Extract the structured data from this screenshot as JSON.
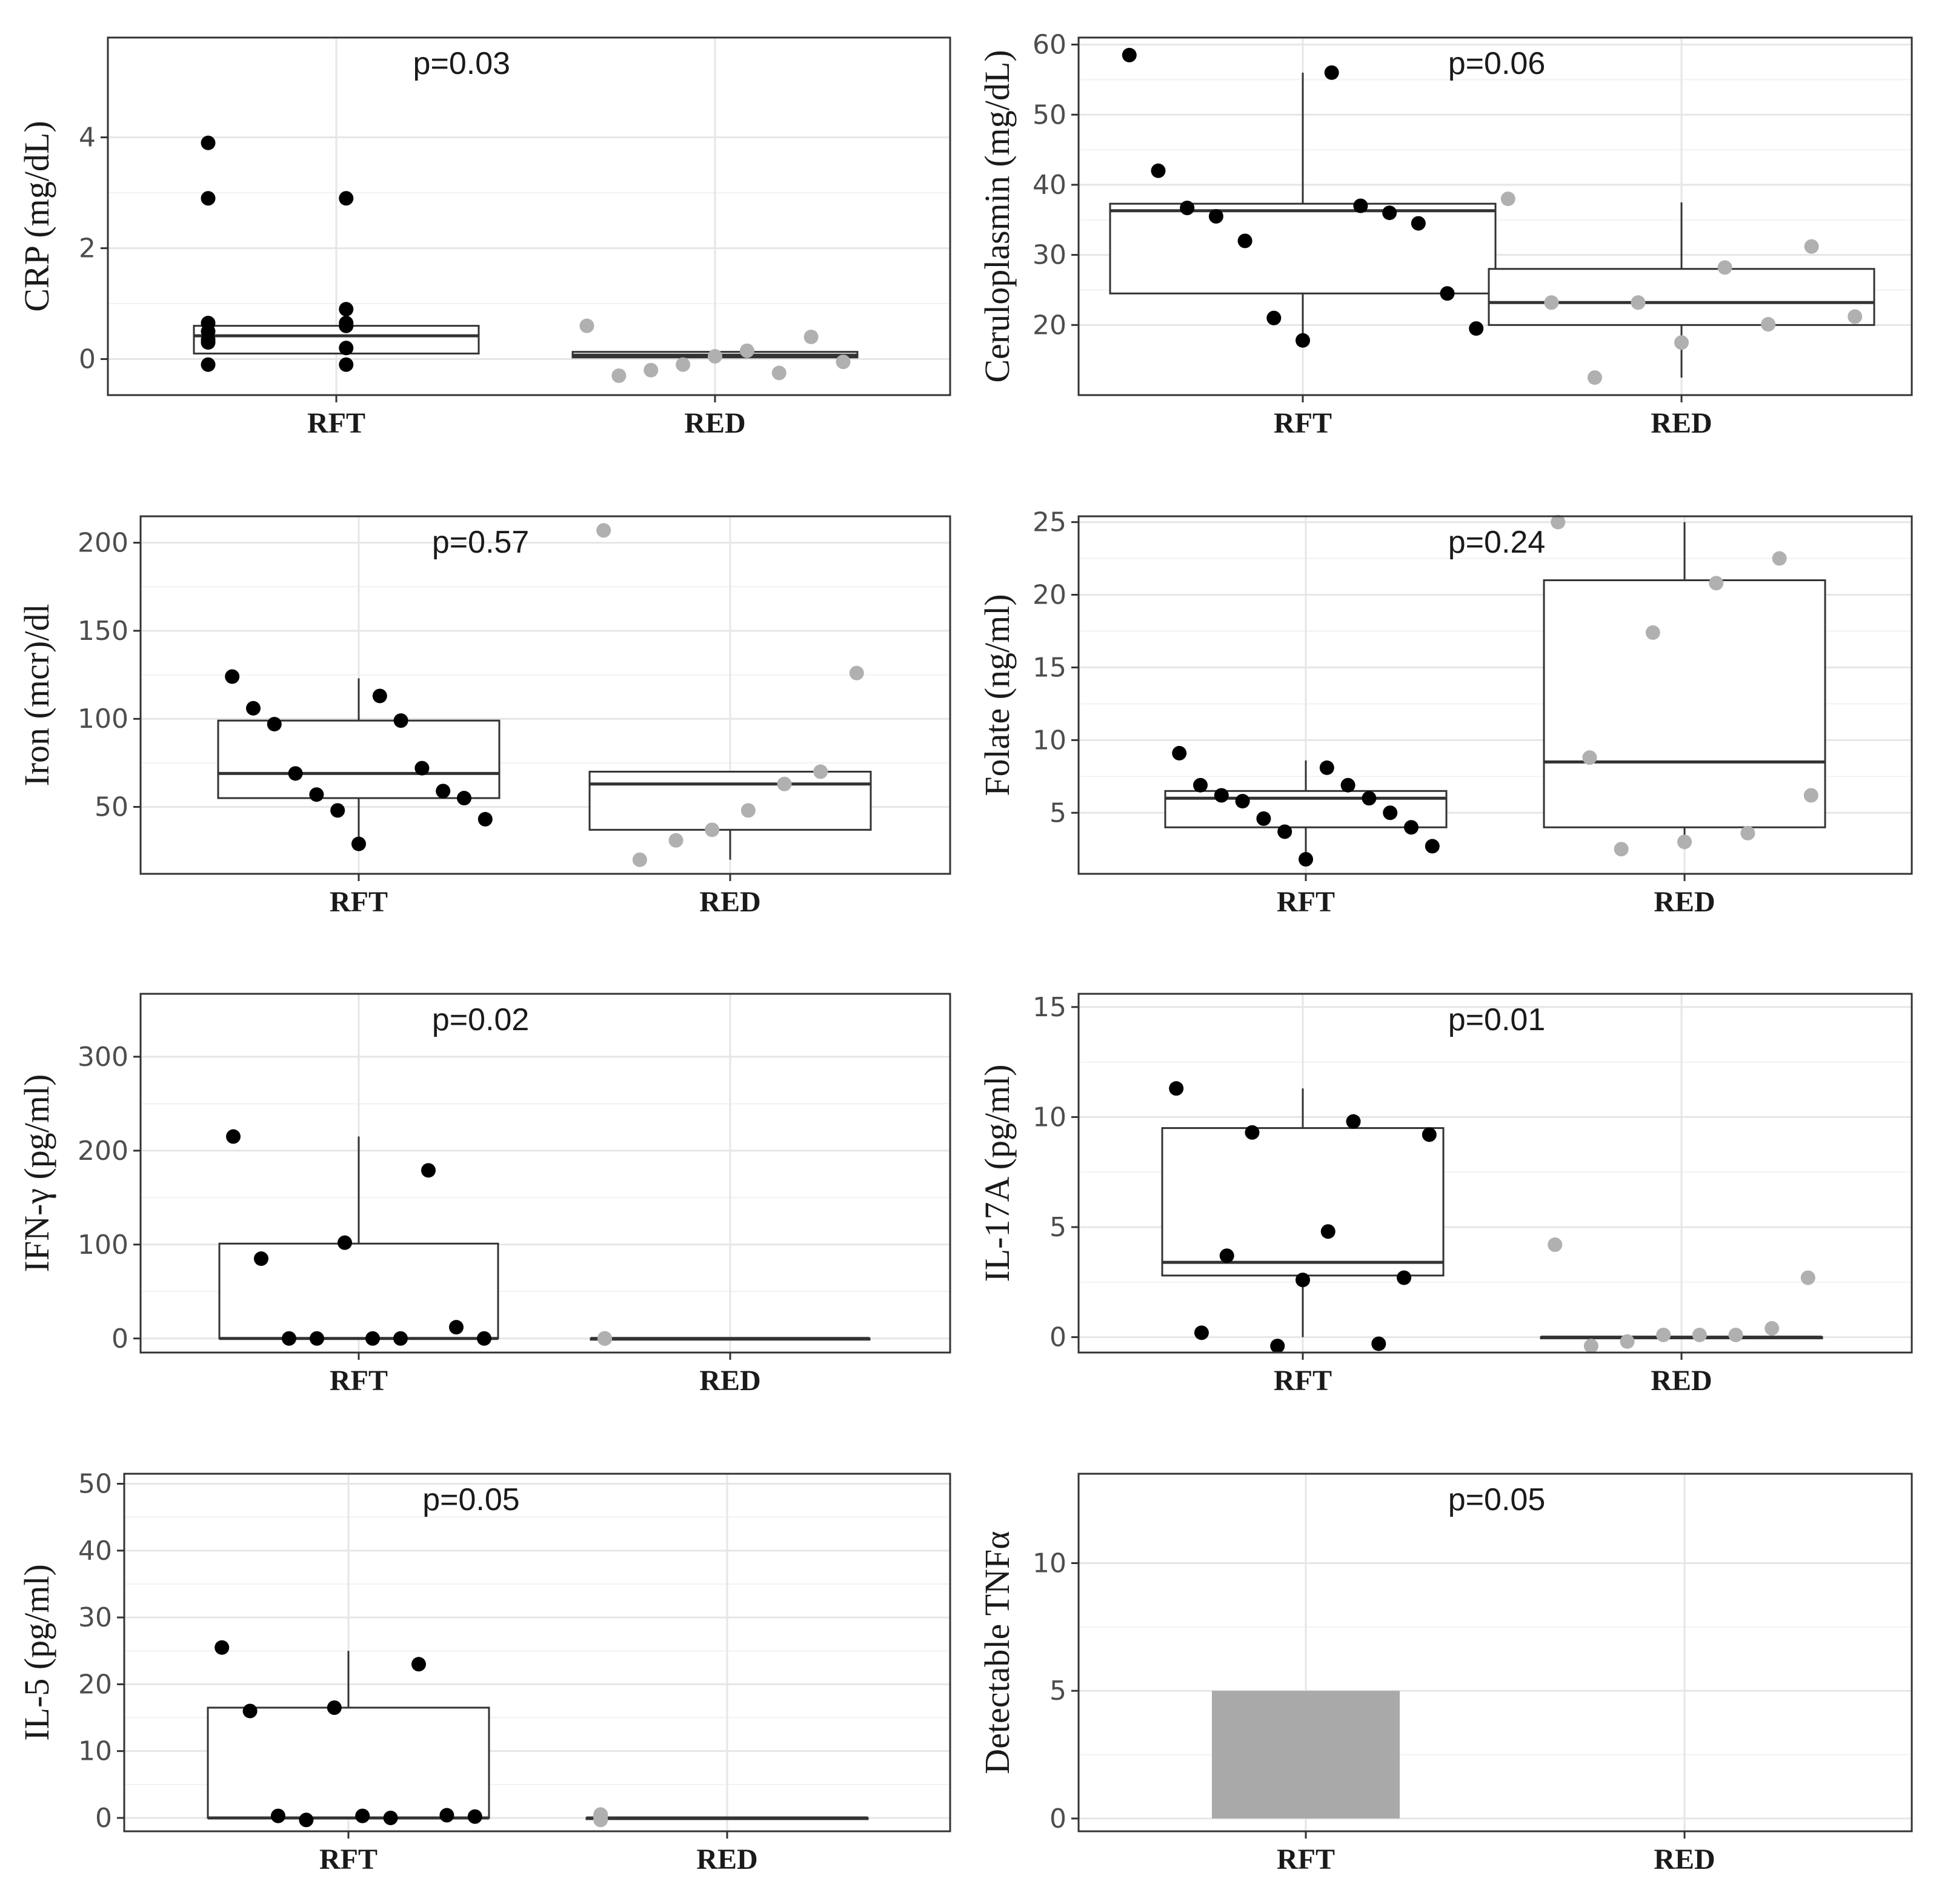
{
  "figure": {
    "colors": {
      "rft_points": "#000000",
      "red_points": "#b0b0b0",
      "bar_fill": "#a9a9a9",
      "grid_major": "#e6e6e6",
      "grid_minor": "#f2f2f2",
      "panel_border": "#333333"
    }
  },
  "chart_data": [
    {
      "type": "box+jitter",
      "ylabel": "CRP (mg/dL)",
      "annotation": "p=0.03",
      "categories": [
        "RFT",
        "RED"
      ],
      "yticks": [
        0,
        2,
        4
      ],
      "ylim": [
        -0.65,
        5.8
      ],
      "boxes": [
        {
          "group": "RFT",
          "q1": 0.1,
          "median": 0.42,
          "q3": 0.6
        },
        {
          "group": "RED",
          "q1": 0.03,
          "median": 0.07,
          "q3": 0.13
        }
      ],
      "points": [
        {
          "group": "RFT",
          "values": [
            3.9,
            2.9,
            2.9,
            0.9,
            0.5,
            0.2,
            0.65,
            0.6,
            0.3,
            0.6,
            0.35,
            0.65,
            -0.1,
            -0.1
          ]
        },
        {
          "group": "RED",
          "values": [
            0.6,
            0.4,
            0.15,
            -0.1,
            -0.3,
            -0.05,
            -0.25,
            0.05,
            -0.2
          ]
        }
      ]
    },
    {
      "type": "box+jitter",
      "ylabel": "Ceruloplasmin (mg/dL)",
      "annotation": "p=0.06",
      "categories": [
        "RFT",
        "RED"
      ],
      "yticks": [
        20,
        30,
        40,
        50,
        60
      ],
      "ylim": [
        10,
        61
      ],
      "boxes": [
        {
          "group": "RFT",
          "q1": 24.5,
          "median": 36.3,
          "q3": 37.3,
          "whisker_low": 17.5,
          "whisker_high": 56
        },
        {
          "group": "RED",
          "q1": 20,
          "median": 23.2,
          "q3": 28,
          "whisker_low": 12.5,
          "whisker_high": 37.5
        }
      ],
      "points": [
        {
          "group": "RFT",
          "values": [
            58.5,
            56,
            42,
            37,
            36.7,
            36,
            35.5,
            34.5,
            32,
            24.5,
            21,
            19.5,
            17.8
          ]
        },
        {
          "group": "RED",
          "values": [
            38,
            31.2,
            28.2,
            23.2,
            23.2,
            21.2,
            20.1,
            17.5,
            12.5
          ]
        }
      ]
    },
    {
      "type": "box+jitter",
      "ylabel": "Iron (mcr)/dl",
      "annotation": "p=0.57",
      "categories": [
        "RFT",
        "RED"
      ],
      "yticks": [
        50,
        100,
        150,
        200
      ],
      "ylim": [
        12,
        215
      ],
      "boxes": [
        {
          "group": "RFT",
          "q1": 55,
          "median": 69,
          "q3": 99,
          "whisker_low": 28,
          "whisker_high": 123
        },
        {
          "group": "RED",
          "q1": 37,
          "median": 63,
          "q3": 70,
          "whisker_low": 20,
          "whisker_high": 70
        }
      ],
      "points": [
        {
          "group": "RFT",
          "values": [
            124,
            113,
            106,
            99,
            97,
            72,
            69,
            59,
            57,
            55,
            48,
            43,
            29
          ]
        },
        {
          "group": "RED",
          "values": [
            207,
            126,
            70,
            63,
            48,
            37,
            31,
            20
          ]
        }
      ]
    },
    {
      "type": "box+jitter",
      "ylabel": "Folate (ng/ml)",
      "annotation": "p=0.24",
      "categories": [
        "RFT",
        "RED"
      ],
      "yticks": [
        5,
        10,
        15,
        20,
        25
      ],
      "ylim": [
        0.8,
        25.4
      ],
      "boxes": [
        {
          "group": "RFT",
          "q1": 4,
          "median": 6,
          "q3": 6.5,
          "whisker_low": 1.5,
          "whisker_high": 8.6
        },
        {
          "group": "RED",
          "q1": 4,
          "median": 8.5,
          "q3": 21,
          "whisker_low": 2.5,
          "whisker_high": 25
        }
      ],
      "points": [
        {
          "group": "RFT",
          "values": [
            9.1,
            8.1,
            6.9,
            6.9,
            6.2,
            6.0,
            5.8,
            5.0,
            4.6,
            4.0,
            3.7,
            2.7,
            1.8
          ]
        },
        {
          "group": "RED",
          "values": [
            25,
            22.5,
            20.8,
            17.4,
            8.8,
            6.2,
            3.6,
            3.0,
            2.5
          ]
        }
      ]
    },
    {
      "type": "box+jitter",
      "ylabel": "IFN-γ (pg/ml)",
      "annotation": "p=0.02",
      "categories": [
        "RFT",
        "RED"
      ],
      "yticks": [
        0,
        100,
        200,
        300
      ],
      "ylim": [
        -15,
        367
      ],
      "boxes": [
        {
          "group": "RFT",
          "q1": 0,
          "median": 0,
          "q3": 101,
          "whisker_low": 0,
          "whisker_high": 215
        },
        {
          "group": "RED",
          "q1": 0,
          "median": 0,
          "q3": 0
        }
      ],
      "points": [
        {
          "group": "RFT",
          "values": [
            215,
            179,
            102,
            85,
            12,
            0,
            0,
            0,
            0,
            0
          ]
        },
        {
          "group": "RED",
          "values": [
            0,
            0,
            0,
            0,
            0,
            0,
            0
          ]
        }
      ]
    },
    {
      "type": "box+jitter",
      "ylabel": "IL-17A (pg/ml)",
      "annotation": "p=0.01",
      "categories": [
        "RFT",
        "RED"
      ],
      "yticks": [
        0,
        5,
        10,
        15
      ],
      "ylim": [
        -0.7,
        15.6
      ],
      "boxes": [
        {
          "group": "RFT",
          "q1": 2.8,
          "median": 3.4,
          "q3": 9.5,
          "whisker_low": 0,
          "whisker_high": 11.3
        },
        {
          "group": "RED",
          "q1": 0,
          "median": 0,
          "q3": 0
        }
      ],
      "points": [
        {
          "group": "RFT",
          "values": [
            11.3,
            9.8,
            9.3,
            9.2,
            4.8,
            3.7,
            2.7,
            2.6,
            0.2,
            -0.3,
            -0.4
          ]
        },
        {
          "group": "RED",
          "values": [
            4.2,
            2.7,
            0.4,
            0.1,
            0.1,
            0.1,
            -0.2,
            -0.4
          ]
        }
      ]
    },
    {
      "type": "box+jitter",
      "ylabel": "IL-5 (pg/ml)",
      "annotation": "p=0.05",
      "categories": [
        "RFT",
        "RED"
      ],
      "yticks": [
        0,
        10,
        20,
        30,
        40,
        50
      ],
      "ylim": [
        -2,
        51.5
      ],
      "boxes": [
        {
          "group": "RFT",
          "q1": 0,
          "median": 0,
          "q3": 16.5,
          "whisker_low": 0,
          "whisker_high": 25
        },
        {
          "group": "RED",
          "q1": 0,
          "median": 0,
          "q3": 0
        }
      ],
      "points": [
        {
          "group": "RFT",
          "values": [
            25.5,
            23,
            16.5,
            16,
            0.4,
            0.3,
            0.3,
            0.2,
            0,
            -0.3
          ]
        },
        {
          "group": "RED",
          "values": [
            0.5,
            0.5,
            0.3,
            0.3,
            0.1,
            0,
            -0.3
          ]
        }
      ]
    },
    {
      "type": "bar",
      "ylabel": "Detectable TNFα",
      "annotation": "p=0.05",
      "categories": [
        "RFT",
        "RED"
      ],
      "values": [
        5,
        0
      ],
      "yticks": [
        0,
        5,
        10
      ],
      "ylim": [
        -0.5,
        13.5
      ]
    }
  ]
}
